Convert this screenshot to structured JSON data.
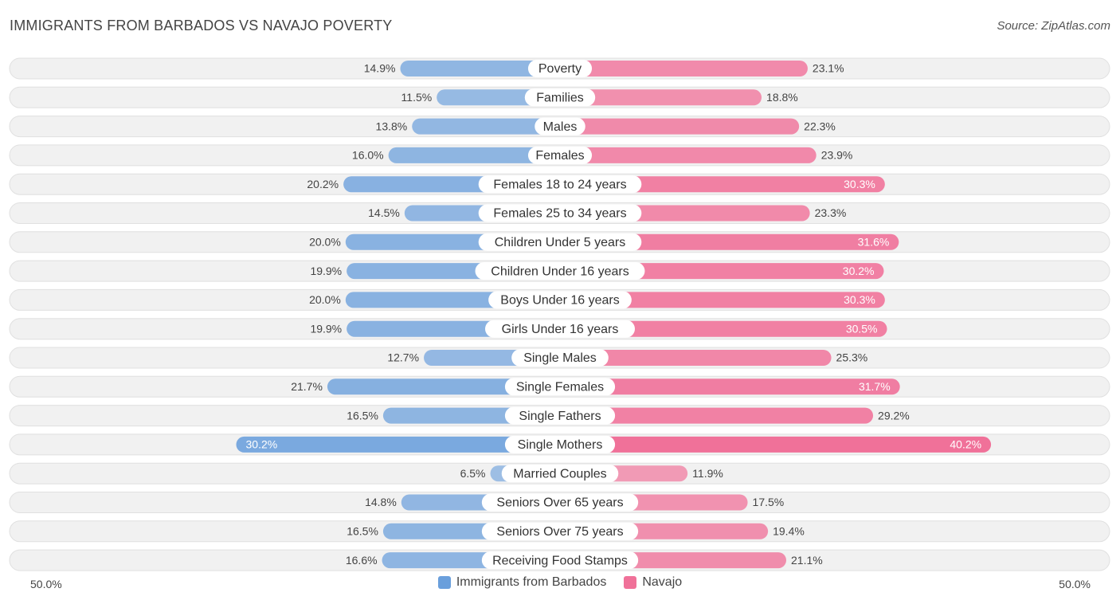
{
  "title": "IMMIGRANTS FROM BARBADOS VS NAVAJO POVERTY",
  "source": "Source: ZipAtlas.com",
  "chart_data": {
    "type": "bar",
    "orientation": "diverging-horizontal",
    "title": "IMMIGRANTS FROM BARBADOS VS NAVAJO POVERTY",
    "categories": [
      "Poverty",
      "Families",
      "Males",
      "Females",
      "Females 18 to 24 years",
      "Females 25 to 34 years",
      "Children Under 5 years",
      "Children Under 16 years",
      "Boys Under 16 years",
      "Girls Under 16 years",
      "Single Males",
      "Single Females",
      "Single Fathers",
      "Single Mothers",
      "Married Couples",
      "Seniors Over 65 years",
      "Seniors Over 75 years",
      "Receiving Food Stamps"
    ],
    "series": [
      {
        "name": "Immigrants from Barbados",
        "color": "#6a9fdc",
        "side": "left",
        "values": [
          14.9,
          11.5,
          13.8,
          16.0,
          20.2,
          14.5,
          20.0,
          19.9,
          20.0,
          19.9,
          12.7,
          21.7,
          16.5,
          30.2,
          6.5,
          14.8,
          16.5,
          16.6
        ],
        "labels": [
          "14.9%",
          "11.5%",
          "13.8%",
          "16.0%",
          "20.2%",
          "14.5%",
          "20.0%",
          "19.9%",
          "20.0%",
          "19.9%",
          "12.7%",
          "21.7%",
          "16.5%",
          "30.2%",
          "6.5%",
          "14.8%",
          "16.5%",
          "16.6%"
        ]
      },
      {
        "name": "Navajo",
        "color": "#f07199",
        "side": "right",
        "values": [
          23.1,
          18.8,
          22.3,
          23.9,
          30.3,
          23.3,
          31.6,
          30.2,
          30.3,
          30.5,
          25.3,
          31.7,
          29.2,
          40.2,
          11.9,
          17.5,
          19.4,
          21.1
        ],
        "labels": [
          "23.1%",
          "18.8%",
          "22.3%",
          "23.9%",
          "30.3%",
          "23.3%",
          "31.6%",
          "30.2%",
          "30.3%",
          "30.5%",
          "25.3%",
          "31.7%",
          "29.2%",
          "40.2%",
          "11.9%",
          "17.5%",
          "19.4%",
          "21.1%"
        ]
      }
    ],
    "xlim": [
      -50,
      50
    ],
    "axis_labels": {
      "left": "50.0%",
      "right": "50.0%"
    },
    "legend": [
      "Immigrants from Barbados",
      "Navajo"
    ],
    "legend_position": "bottom-center"
  }
}
